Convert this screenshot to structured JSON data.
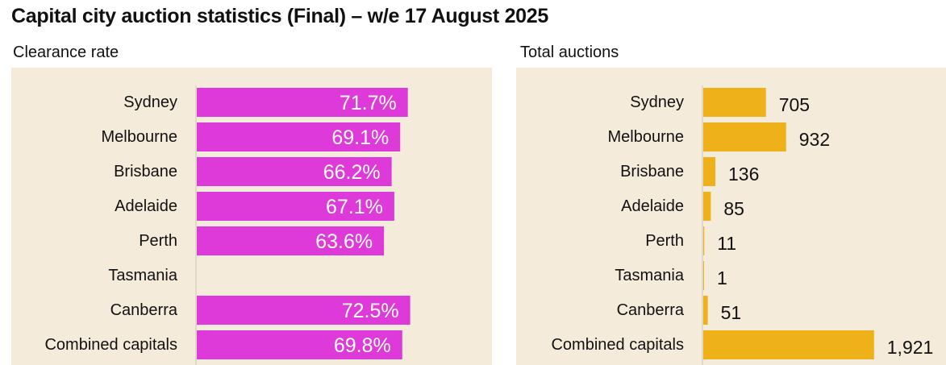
{
  "title": "Capital city auction statistics (Final) – w/e 17 August 2025",
  "colors": {
    "panel_bg": "#f5ebda",
    "clearance_bar": "#dd3ad9",
    "auctions_bar": "#efb11a",
    "axis": "#cfc6b4"
  },
  "chart_data": [
    {
      "type": "bar",
      "orientation": "horizontal",
      "title": "Clearance rate",
      "categories": [
        "Sydney",
        "Melbourne",
        "Brisbane",
        "Adelaide",
        "Perth",
        "Tasmania",
        "Canberra",
        "Combined capitals"
      ],
      "values": [
        71.7,
        69.1,
        66.2,
        67.1,
        63.6,
        null,
        72.5,
        69.8
      ],
      "labels": [
        "71.7%",
        "69.1%",
        "66.2%",
        "67.1%",
        "63.6%",
        "",
        "72.5%",
        "69.8%"
      ],
      "unit": "%",
      "xlim": [
        0,
        100
      ],
      "label_position": "inside-end"
    },
    {
      "type": "bar",
      "orientation": "horizontal",
      "title": "Total auctions",
      "categories": [
        "Sydney",
        "Melbourne",
        "Brisbane",
        "Adelaide",
        "Perth",
        "Tasmania",
        "Canberra",
        "Combined capitals"
      ],
      "values": [
        705,
        932,
        136,
        85,
        11,
        1,
        51,
        1921
      ],
      "labels": [
        "705",
        "932",
        "136",
        "85",
        "11",
        "1",
        "51",
        "1,921"
      ],
      "xlim": [
        0,
        2050
      ],
      "label_position": "outside-end"
    }
  ]
}
